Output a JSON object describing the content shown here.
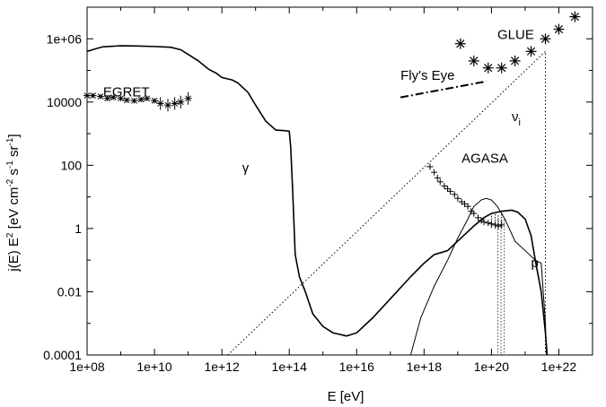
{
  "chart_data": {
    "type": "line",
    "title": "",
    "xlabel": "E [eV]",
    "ylabel": "j(E) E² [eV cm⁻² s⁻¹ sr⁻¹]",
    "x_scale": "log",
    "y_scale": "log",
    "xlim": [
      100000000.0,
      1e+23
    ],
    "ylim": [
      0.0001,
      10000000
    ],
    "x_ticks": [
      "1e+08",
      "1e+10",
      "1e+12",
      "1e+14",
      "1e+16",
      "1e+18",
      "1e+20",
      "1e+22"
    ],
    "y_ticks": [
      "0.0001",
      "0.01",
      "1",
      "100",
      "10000",
      "1e+06"
    ],
    "grid": false,
    "annotations": [
      {
        "text": "EGRET",
        "x": 300000000.0,
        "y": 15000
      },
      {
        "text": "γ",
        "x": 4000000000000.0,
        "y": 60
      },
      {
        "text": "GLUE",
        "x": 1.5e+20,
        "y": 1000000
      },
      {
        "text": "Fly's Eye",
        "x": 2e+17,
        "y": 50000
      },
      {
        "text": "νi",
        "x": 4e+20,
        "y": 2500
      },
      {
        "text": "AGASA",
        "x": 1.3e+19,
        "y": 120
      },
      {
        "text": "p",
        "x": 1.5e+21,
        "y": 0.06
      }
    ],
    "series": [
      {
        "style": "solid-thick",
        "points": [
          [
            100000000.0,
            400000
          ],
          [
            200000000.0,
            500000
          ],
          [
            300000000.0,
            560000
          ],
          [
            1000000000.0,
            600000
          ],
          [
            3000000000.0,
            590000
          ],
          [
            10000000000.0,
            570000
          ],
          [
            30000000000.0,
            540000
          ],
          [
            60000000000.0,
            450000
          ],
          [
            100000000000.0,
            320000
          ],
          [
            200000000000.0,
            200000
          ],
          [
            400000000000.0,
            110000
          ],
          [
            700000000000.0,
            80000
          ],
          [
            1000000000000.0,
            60000
          ],
          [
            2000000000000.0,
            50000
          ],
          [
            3000000000000.0,
            40000
          ],
          [
            6000000000000.0,
            20000
          ],
          [
            10000000000000.0,
            8000
          ],
          [
            20000000000000.0,
            2500
          ],
          [
            40000000000000.0,
            1300
          ],
          [
            70000000000000.0,
            1250
          ],
          [
            100000000000000.0,
            1200
          ],
          [
            110000000000000.0,
            400
          ],
          [
            125000000000000.0,
            20
          ],
          [
            150000000000000.0,
            0.15
          ],
          [
            200000000000000.0,
            0.03
          ],
          [
            300000000000000.0,
            0.01
          ],
          [
            500000000000000.0,
            0.002
          ],
          [
            1000000000000000.0,
            0.0008
          ],
          [
            2000000000000000.0,
            0.0005
          ],
          [
            5000000000000000.0,
            0.0004
          ],
          [
            1e+16,
            0.0005
          ],
          [
            3e+16,
            0.0015
          ],
          [
            1e+17,
            0.006
          ],
          [
            4e+17,
            0.03
          ],
          [
            1e+18,
            0.08
          ],
          [
            2e+18,
            0.15
          ],
          [
            3e+18,
            0.17
          ],
          [
            5e+18,
            0.2
          ],
          [
            1e+19,
            0.4
          ],
          [
            3e+19,
            1.2
          ],
          [
            6e+19,
            2.2
          ],
          [
            1e+20,
            3
          ],
          [
            2e+20,
            3.5
          ],
          [
            4e+20,
            3.8
          ],
          [
            6e+20,
            3.3
          ],
          [
            1e+21,
            2
          ],
          [
            1.5e+21,
            0.6
          ],
          [
            2e+21,
            0.1
          ],
          [
            3e+21,
            0.01
          ],
          [
            4e+21,
            0.0005
          ],
          [
            4.5e+21,
            0.0001
          ]
        ]
      },
      {
        "style": "solid-thin",
        "points": [
          [
            4e+17,
            0.0001
          ],
          [
            8e+17,
            0.0015
          ],
          [
            2e+18,
            0.015
          ],
          [
            5e+18,
            0.1
          ],
          [
            1e+19,
            0.5
          ],
          [
            2e+19,
            2
          ],
          [
            3e+19,
            5
          ],
          [
            5e+19,
            8
          ],
          [
            7e+19,
            9
          ],
          [
            1e+20,
            8
          ],
          [
            1.5e+20,
            5
          ],
          [
            2.5e+20,
            2
          ],
          [
            5e+20,
            0.4
          ],
          [
            1e+21,
            0.2
          ],
          [
            2e+21,
            0.1
          ],
          [
            3e+21,
            0.08
          ],
          [
            4e+21,
            0.001
          ],
          [
            4.3e+21,
            0.0001
          ]
        ]
      },
      {
        "name": "νi",
        "style": "dotted",
        "points": [
          [
            1500000000000.0,
            0.0001
          ],
          [
            4e+21,
            400000
          ],
          [
            4e+21,
            0.0001
          ]
        ]
      },
      {
        "name": "Fly's Eye",
        "style": "dashdot",
        "points": [
          [
            2e+17,
            14000
          ],
          [
            7e+19,
            45000
          ]
        ]
      }
    ],
    "data_sets": [
      {
        "name": "EGRET",
        "marker": "cross-errorbar",
        "points": [
          [
            100000000.0,
            16000
          ],
          [
            150000000.0,
            16000
          ],
          [
            250000000.0,
            15000
          ],
          [
            400000000.0,
            13000
          ],
          [
            600000000.0,
            14000
          ],
          [
            1000000000.0,
            13000
          ],
          [
            1500000000.0,
            11500
          ],
          [
            2500000000.0,
            11000
          ],
          [
            4000000000.0,
            12000
          ],
          [
            6000000000.0,
            13000
          ],
          [
            10000000000.0,
            11000
          ],
          [
            15000000000.0,
            9000
          ],
          [
            25000000000.0,
            8000
          ],
          [
            40000000000.0,
            9000
          ],
          [
            60000000000.0,
            10000
          ],
          [
            100000000000.0,
            13000
          ]
        ]
      },
      {
        "name": "GLUE",
        "marker": "asterisk",
        "points": [
          [
            1.2e+19,
            700000
          ],
          [
            3e+19,
            200000
          ],
          [
            8e+19,
            120000
          ],
          [
            2e+20,
            120000
          ],
          [
            5e+20,
            200000
          ],
          [
            1.5e+21,
            400000
          ],
          [
            4e+21,
            1000000
          ],
          [
            1e+22,
            2000000
          ],
          [
            3e+22,
            5000000
          ]
        ]
      },
      {
        "name": "AGASA",
        "marker": "plus-errorbar",
        "points": [
          [
            1.5e+18,
            90
          ],
          [
            2e+18,
            60
          ],
          [
            2.5e+18,
            40
          ],
          [
            3e+18,
            30
          ],
          [
            4e+18,
            22
          ],
          [
            5e+18,
            18
          ],
          [
            6e+18,
            15
          ],
          [
            8e+18,
            12
          ],
          [
            1e+19,
            9
          ],
          [
            1.3e+19,
            7
          ],
          [
            1.6e+19,
            6
          ],
          [
            2e+19,
            5
          ],
          [
            2.5e+19,
            3.5
          ],
          [
            3e+19,
            3
          ],
          [
            4e+19,
            2.2
          ],
          [
            5e+19,
            1.8
          ],
          [
            6e+19,
            1.6
          ],
          [
            8e+19,
            1.5
          ],
          [
            1e+20,
            1.4
          ],
          [
            1.3e+20,
            1.3
          ],
          [
            1.6e+20,
            1.2
          ],
          [
            2e+20,
            1.3
          ]
        ]
      }
    ]
  }
}
